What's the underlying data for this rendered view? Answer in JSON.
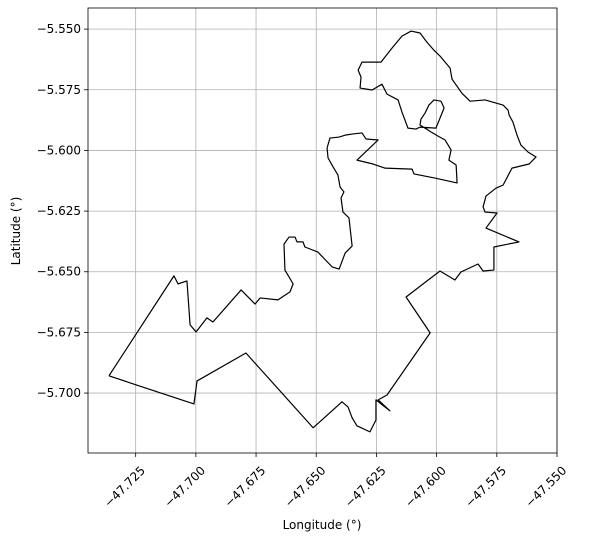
{
  "chart_data": {
    "type": "line",
    "xlabel": "Longitude (°)",
    "ylabel": "Latitude (°)",
    "color": "#000000",
    "grid": true,
    "xlim": [
      -47.7448,
      -47.55
    ],
    "ylim": [
      -5.7247,
      -5.5413
    ],
    "xticks": [
      {
        "value": -47.725,
        "label": "−47.725"
      },
      {
        "value": -47.7,
        "label": "−47.700"
      },
      {
        "value": -47.675,
        "label": "−47.675"
      },
      {
        "value": -47.65,
        "label": "−47.650"
      },
      {
        "value": -47.625,
        "label": "−47.625"
      },
      {
        "value": -47.6,
        "label": "−47.600"
      },
      {
        "value": -47.575,
        "label": "−47.575"
      },
      {
        "value": -47.55,
        "label": "−47.550"
      }
    ],
    "yticks": [
      {
        "value": -5.55,
        "label": "−5.550"
      },
      {
        "value": -5.575,
        "label": "−5.575"
      },
      {
        "value": -5.6,
        "label": "−5.600"
      },
      {
        "value": -5.625,
        "label": "−5.625"
      },
      {
        "value": -5.65,
        "label": "−5.650"
      },
      {
        "value": -5.675,
        "label": "−5.675"
      },
      {
        "value": -5.7,
        "label": "−5.700"
      }
    ],
    "x": [
      -47.7361,
      -47.7091,
      -47.7074,
      -47.7037,
      -47.7024,
      -47.6999,
      -47.6954,
      -47.6929,
      -47.6812,
      -47.6754,
      -47.6733,
      -47.6659,
      -47.6609,
      -47.6596,
      -47.663,
      -47.6634,
      -47.6613,
      -47.6588,
      -47.658,
      -47.6555,
      -47.6547,
      -47.6493,
      -47.6434,
      -47.6405,
      -47.638,
      -47.6351,
      -47.6364,
      -47.6389,
      -47.6397,
      -47.6385,
      -47.6401,
      -47.641,
      -47.643,
      -47.6451,
      -47.6455,
      -47.6443,
      -47.6405,
      -47.638,
      -47.6347,
      -47.631,
      -47.6293,
      -47.6243,
      -47.6331,
      -47.6264,
      -47.6214,
      -47.6102,
      -47.6094,
      -47.6007,
      -47.5915,
      -47.5919,
      -47.5949,
      -47.594,
      -47.5965,
      -47.5994,
      -47.6023,
      -47.6069,
      -47.6065,
      -47.6048,
      -47.6032,
      -47.6011,
      -47.5982,
      -47.5969,
      -47.5986,
      -47.6003,
      -47.6069,
      -47.6086,
      -47.6119,
      -47.6144,
      -47.616,
      -47.6206,
      -47.6227,
      -47.6268,
      -47.6318,
      -47.6314,
      -47.6326,
      -47.631,
      -47.6231,
      -47.6185,
      -47.6144,
      -47.6106,
      -47.6069,
      -47.604,
      -47.6011,
      -47.5986,
      -47.5944,
      -47.5936,
      -47.5895,
      -47.5861,
      -47.5799,
      -47.5724,
      -47.5703,
      -47.5699,
      -47.5683,
      -47.5666,
      -47.565,
      -47.562,
      -47.5587,
      -47.5616,
      -47.5687,
      -47.5724,
      -47.5753,
      -47.5795,
      -47.5807,
      -47.5799,
      -47.5749,
      -47.5795,
      -47.5658,
      -47.5762,
      -47.5762,
      -47.5807,
      -47.5828,
      -47.5899,
      -47.5924,
      -47.5986,
      -47.6127,
      -47.6027,
      -47.6206,
      -47.6243,
      -47.6194,
      -47.6252,
      -47.6252,
      -47.6277,
      -47.6331,
      -47.6351,
      -47.6368,
      -47.6393,
      -47.6513,
      -47.6792,
      -47.6995,
      -47.7008,
      -47.7361
    ],
    "values": [
      -5.6929,
      -5.6517,
      -5.655,
      -5.6538,
      -5.6719,
      -5.6748,
      -5.669,
      -5.6707,
      -5.6575,
      -5.6633,
      -5.6608,
      -5.6616,
      -5.6583,
      -5.655,
      -5.6493,
      -5.6386,
      -5.6357,
      -5.6357,
      -5.6377,
      -5.6377,
      -5.6398,
      -5.6419,
      -5.648,
      -5.6489,
      -5.6423,
      -5.6394,
      -5.6278,
      -5.6254,
      -5.6196,
      -5.6171,
      -5.6151,
      -5.6101,
      -5.6068,
      -5.6031,
      -5.599,
      -5.5949,
      -5.5945,
      -5.5937,
      -5.5932,
      -5.5928,
      -5.5953,
      -5.5957,
      -5.604,
      -5.6056,
      -5.6073,
      -5.6077,
      -5.6097,
      -5.6114,
      -5.6134,
      -5.606,
      -5.604,
      -5.5998,
      -5.5957,
      -5.5941,
      -5.5924,
      -5.5895,
      -5.5871,
      -5.5846,
      -5.5813,
      -5.5792,
      -5.5797,
      -5.5825,
      -5.5867,
      -5.5908,
      -5.5904,
      -5.5912,
      -5.5908,
      -5.5842,
      -5.5792,
      -5.5768,
      -5.5727,
      -5.5751,
      -5.5743,
      -5.5698,
      -5.5669,
      -5.5636,
      -5.5636,
      -5.5578,
      -5.5529,
      -5.5508,
      -5.5516,
      -5.5554,
      -5.5587,
      -5.5611,
      -5.5661,
      -5.5706,
      -5.5764,
      -5.5797,
      -5.5792,
      -5.5813,
      -5.5834,
      -5.5854,
      -5.5883,
      -5.5937,
      -5.5978,
      -5.6007,
      -5.6027,
      -5.6056,
      -5.6073,
      -5.6143,
      -5.6155,
      -5.6188,
      -5.6233,
      -5.6254,
      -5.6258,
      -5.632,
      -5.6377,
      -5.6398,
      -5.6493,
      -5.6497,
      -5.6468,
      -5.6501,
      -5.6534,
      -5.6497,
      -5.6604,
      -5.6752,
      -5.7008,
      -5.7028,
      -5.7073,
      -5.7028,
      -5.7111,
      -5.716,
      -5.7135,
      -5.7102,
      -5.7057,
      -5.7036,
      -5.7143,
      -5.6835,
      -5.695,
      -5.7045,
      -5.6929
    ]
  }
}
